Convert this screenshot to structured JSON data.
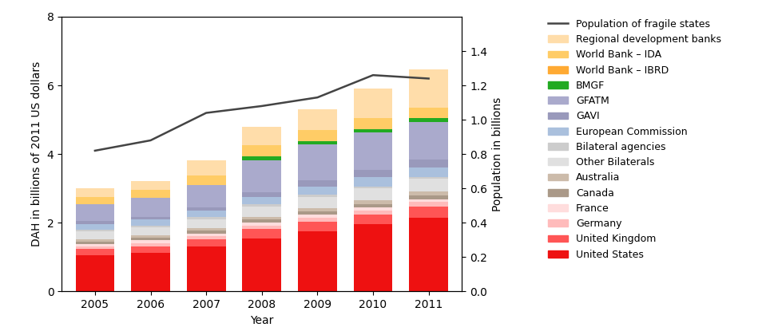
{
  "chart_data": {
    "type": "bar",
    "stacked": true,
    "x": [
      2005,
      2006,
      2007,
      2008,
      2009,
      2010,
      2011
    ],
    "xlim": [
      2004.4,
      2011.6
    ],
    "xticks": [
      2005,
      2006,
      2007,
      2008,
      2009,
      2010,
      2011
    ],
    "xlabel": "Year",
    "ylabel": "DAH in billions of 2011 US dollars",
    "ylim": [
      0,
      8
    ],
    "yticks": [
      0,
      2,
      4,
      6,
      8
    ],
    "y2label": "Population in billions",
    "y2lim": [
      0,
      1.6
    ],
    "y2ticks": [
      {
        "value": 0,
        "label": "0.0"
      },
      0.2,
      0.4,
      0.6,
      0.8,
      {
        "value": 1,
        "label": "1.0"
      },
      1.2,
      1.4
    ],
    "grid": false,
    "legend": "right",
    "series": [
      {
        "name": "United States",
        "color": "#ee1111",
        "values": [
          1.05,
          1.12,
          1.3,
          1.55,
          1.75,
          1.95,
          2.15
        ]
      },
      {
        "name": "United Kingdom",
        "color": "#ff5555",
        "values": [
          0.18,
          0.2,
          0.22,
          0.26,
          0.28,
          0.3,
          0.33
        ]
      },
      {
        "name": "Germany",
        "color": "#ffbbbb",
        "values": [
          0.08,
          0.09,
          0.09,
          0.1,
          0.11,
          0.11,
          0.12
        ]
      },
      {
        "name": "France",
        "color": "#ffdddd",
        "values": [
          0.08,
          0.08,
          0.08,
          0.09,
          0.09,
          0.09,
          0.09
        ]
      },
      {
        "name": "Canada",
        "color": "#aa9988",
        "values": [
          0.07,
          0.07,
          0.08,
          0.09,
          0.1,
          0.1,
          0.11
        ]
      },
      {
        "name": "Australia",
        "color": "#ccbbaa",
        "values": [
          0.06,
          0.07,
          0.08,
          0.09,
          0.1,
          0.11,
          0.11
        ]
      },
      {
        "name": "Other Bilaterals",
        "color": "#e0e0e0",
        "values": [
          0.22,
          0.24,
          0.26,
          0.3,
          0.33,
          0.35,
          0.37
        ]
      },
      {
        "name": "Bilateral agencies",
        "color": "#cccccc",
        "values": [
          0.05,
          0.05,
          0.05,
          0.05,
          0.05,
          0.05,
          0.05
        ]
      },
      {
        "name": "European Commission",
        "color": "#aac0dd",
        "values": [
          0.18,
          0.17,
          0.19,
          0.22,
          0.25,
          0.27,
          0.29
        ]
      },
      {
        "name": "GAVI",
        "color": "#9999bb",
        "values": [
          0.08,
          0.09,
          0.1,
          0.13,
          0.17,
          0.2,
          0.22
        ]
      },
      {
        "name": "GFATM",
        "color": "#aaaacc",
        "values": [
          0.5,
          0.55,
          0.65,
          0.95,
          1.05,
          1.1,
          1.1
        ]
      },
      {
        "name": "BMGF",
        "color": "#22aa22",
        "values": [
          0.0,
          0.0,
          0.0,
          0.1,
          0.1,
          0.1,
          0.1
        ]
      },
      {
        "name": "World Bank – IBRD",
        "color": "#ffaa33",
        "values": [
          0.0,
          0.0,
          0.0,
          0.0,
          0.0,
          0.0,
          0.0
        ]
      },
      {
        "name": "World Bank – IDA",
        "color": "#ffcc66",
        "values": [
          0.2,
          0.23,
          0.27,
          0.32,
          0.32,
          0.32,
          0.32
        ]
      },
      {
        "name": "Regional development banks",
        "color": "#ffddaa",
        "values": [
          0.25,
          0.25,
          0.45,
          0.55,
          0.6,
          0.85,
          1.1
        ]
      },
      {
        "name": "Population of fragile states",
        "type": "line",
        "axis": "y2",
        "color": "#444444",
        "values": [
          0.82,
          0.88,
          1.04,
          1.08,
          1.13,
          1.26,
          1.24
        ]
      }
    ]
  }
}
